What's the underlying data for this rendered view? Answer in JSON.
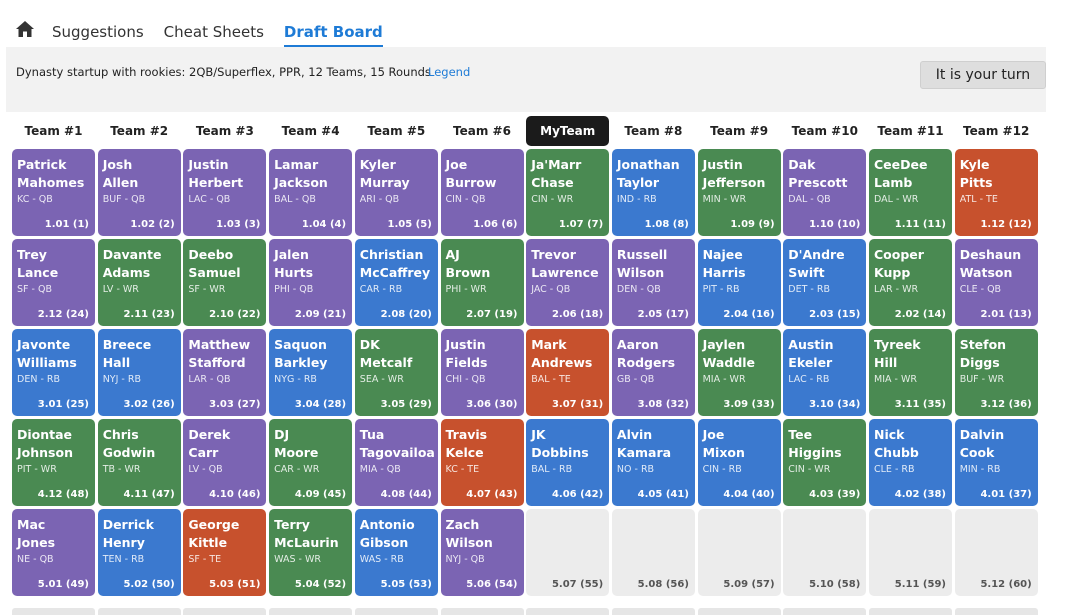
{
  "nav": {
    "home_icon": "home-icon",
    "tabs": [
      {
        "label": "Suggestions",
        "active": false
      },
      {
        "label": "Cheat Sheets",
        "active": false
      },
      {
        "label": "Draft Board",
        "active": true
      }
    ]
  },
  "settings_text": "Dynasty startup with rookies: 2QB/Superflex, PPR, 12 Teams, 15 Rounds",
  "legend_link": "Legend",
  "turn_button": "It is your turn",
  "colors": {
    "QB": "#7b64b3",
    "RB": "#3b79cf",
    "WR": "#4a8a52",
    "TE": "#c7512d",
    "accent": "#1e7bd6"
  },
  "teams": [
    "Team #1",
    "Team #2",
    "Team #3",
    "Team #4",
    "Team #5",
    "Team #6",
    "MyTeam",
    "Team #8",
    "Team #9",
    "Team #10",
    "Team #11",
    "Team #12"
  ],
  "my_team_index": 6,
  "rounds": [
    [
      {
        "first": "Patrick",
        "last": "Mahomes",
        "team": "KC",
        "pos": "QB",
        "pick": "1.01 (1)"
      },
      {
        "first": "Josh",
        "last": "Allen",
        "team": "BUF",
        "pos": "QB",
        "pick": "1.02 (2)"
      },
      {
        "first": "Justin",
        "last": "Herbert",
        "team": "LAC",
        "pos": "QB",
        "pick": "1.03 (3)"
      },
      {
        "first": "Lamar",
        "last": "Jackson",
        "team": "BAL",
        "pos": "QB",
        "pick": "1.04 (4)"
      },
      {
        "first": "Kyler",
        "last": "Murray",
        "team": "ARI",
        "pos": "QB",
        "pick": "1.05 (5)"
      },
      {
        "first": "Joe",
        "last": "Burrow",
        "team": "CIN",
        "pos": "QB",
        "pick": "1.06 (6)"
      },
      {
        "first": "Ja'Marr",
        "last": "Chase",
        "team": "CIN",
        "pos": "WR",
        "pick": "1.07 (7)"
      },
      {
        "first": "Jonathan",
        "last": "Taylor",
        "team": "IND",
        "pos": "RB",
        "pick": "1.08 (8)"
      },
      {
        "first": "Justin",
        "last": "Jefferson",
        "team": "MIN",
        "pos": "WR",
        "pick": "1.09 (9)"
      },
      {
        "first": "Dak",
        "last": "Prescott",
        "team": "DAL",
        "pos": "QB",
        "pick": "1.10 (10)"
      },
      {
        "first": "CeeDee",
        "last": "Lamb",
        "team": "DAL",
        "pos": "WR",
        "pick": "1.11 (11)"
      },
      {
        "first": "Kyle",
        "last": "Pitts",
        "team": "ATL",
        "pos": "TE",
        "pick": "1.12 (12)"
      }
    ],
    [
      {
        "first": "Trey",
        "last": "Lance",
        "team": "SF",
        "pos": "QB",
        "pick": "2.12 (24)"
      },
      {
        "first": "Davante",
        "last": "Adams",
        "team": "LV",
        "pos": "WR",
        "pick": "2.11 (23)"
      },
      {
        "first": "Deebo",
        "last": "Samuel",
        "team": "SF",
        "pos": "WR",
        "pick": "2.10 (22)"
      },
      {
        "first": "Jalen",
        "last": "Hurts",
        "team": "PHI",
        "pos": "QB",
        "pick": "2.09 (21)"
      },
      {
        "first": "Christian",
        "last": "McCaffrey",
        "team": "CAR",
        "pos": "RB",
        "pick": "2.08 (20)"
      },
      {
        "first": "AJ",
        "last": "Brown",
        "team": "PHI",
        "pos": "WR",
        "pick": "2.07 (19)"
      },
      {
        "first": "Trevor",
        "last": "Lawrence",
        "team": "JAC",
        "pos": "QB",
        "pick": "2.06 (18)"
      },
      {
        "first": "Russell",
        "last": "Wilson",
        "team": "DEN",
        "pos": "QB",
        "pick": "2.05 (17)"
      },
      {
        "first": "Najee",
        "last": "Harris",
        "team": "PIT",
        "pos": "RB",
        "pick": "2.04 (16)"
      },
      {
        "first": "D'Andre",
        "last": "Swift",
        "team": "DET",
        "pos": "RB",
        "pick": "2.03 (15)"
      },
      {
        "first": "Cooper",
        "last": "Kupp",
        "team": "LAR",
        "pos": "WR",
        "pick": "2.02 (14)"
      },
      {
        "first": "Deshaun",
        "last": "Watson",
        "team": "CLE",
        "pos": "QB",
        "pick": "2.01 (13)"
      }
    ],
    [
      {
        "first": "Javonte",
        "last": "Williams",
        "team": "DEN",
        "pos": "RB",
        "pick": "3.01 (25)"
      },
      {
        "first": "Breece",
        "last": "Hall",
        "team": "NYJ",
        "pos": "RB",
        "pick": "3.02 (26)"
      },
      {
        "first": "Matthew",
        "last": "Stafford",
        "team": "LAR",
        "pos": "QB",
        "pick": "3.03 (27)"
      },
      {
        "first": "Saquon",
        "last": "Barkley",
        "team": "NYG",
        "pos": "RB",
        "pick": "3.04 (28)"
      },
      {
        "first": "DK",
        "last": "Metcalf",
        "team": "SEA",
        "pos": "WR",
        "pick": "3.05 (29)"
      },
      {
        "first": "Justin",
        "last": "Fields",
        "team": "CHI",
        "pos": "QB",
        "pick": "3.06 (30)"
      },
      {
        "first": "Mark",
        "last": "Andrews",
        "team": "BAL",
        "pos": "TE",
        "pick": "3.07 (31)"
      },
      {
        "first": "Aaron",
        "last": "Rodgers",
        "team": "GB",
        "pos": "QB",
        "pick": "3.08 (32)"
      },
      {
        "first": "Jaylen",
        "last": "Waddle",
        "team": "MIA",
        "pos": "WR",
        "pick": "3.09 (33)"
      },
      {
        "first": "Austin",
        "last": "Ekeler",
        "team": "LAC",
        "pos": "RB",
        "pick": "3.10 (34)"
      },
      {
        "first": "Tyreek",
        "last": "Hill",
        "team": "MIA",
        "pos": "WR",
        "pick": "3.11 (35)"
      },
      {
        "first": "Stefon",
        "last": "Diggs",
        "team": "BUF",
        "pos": "WR",
        "pick": "3.12 (36)"
      }
    ],
    [
      {
        "first": "Diontae",
        "last": "Johnson",
        "team": "PIT",
        "pos": "WR",
        "pick": "4.12 (48)"
      },
      {
        "first": "Chris",
        "last": "Godwin",
        "team": "TB",
        "pos": "WR",
        "pick": "4.11 (47)"
      },
      {
        "first": "Derek",
        "last": "Carr",
        "team": "LV",
        "pos": "QB",
        "pick": "4.10 (46)"
      },
      {
        "first": "DJ",
        "last": "Moore",
        "team": "CAR",
        "pos": "WR",
        "pick": "4.09 (45)"
      },
      {
        "first": "Tua",
        "last": "Tagovailoa",
        "team": "MIA",
        "pos": "QB",
        "pick": "4.08 (44)"
      },
      {
        "first": "Travis",
        "last": "Kelce",
        "team": "KC",
        "pos": "TE",
        "pick": "4.07 (43)"
      },
      {
        "first": "JK",
        "last": "Dobbins",
        "team": "BAL",
        "pos": "RB",
        "pick": "4.06 (42)"
      },
      {
        "first": "Alvin",
        "last": "Kamara",
        "team": "NO",
        "pos": "RB",
        "pick": "4.05 (41)"
      },
      {
        "first": "Joe",
        "last": "Mixon",
        "team": "CIN",
        "pos": "RB",
        "pick": "4.04 (40)"
      },
      {
        "first": "Tee",
        "last": "Higgins",
        "team": "CIN",
        "pos": "WR",
        "pick": "4.03 (39)"
      },
      {
        "first": "Nick",
        "last": "Chubb",
        "team": "CLE",
        "pos": "RB",
        "pick": "4.02 (38)"
      },
      {
        "first": "Dalvin",
        "last": "Cook",
        "team": "MIN",
        "pos": "RB",
        "pick": "4.01 (37)"
      }
    ],
    [
      {
        "first": "Mac",
        "last": "Jones",
        "team": "NE",
        "pos": "QB",
        "pick": "5.01 (49)"
      },
      {
        "first": "Derrick",
        "last": "Henry",
        "team": "TEN",
        "pos": "RB",
        "pick": "5.02 (50)"
      },
      {
        "first": "George",
        "last": "Kittle",
        "team": "SF",
        "pos": "TE",
        "pick": "5.03 (51)"
      },
      {
        "first": "Terry",
        "last": "McLaurin",
        "team": "WAS",
        "pos": "WR",
        "pick": "5.04 (52)"
      },
      {
        "first": "Antonio",
        "last": "Gibson",
        "team": "WAS",
        "pos": "RB",
        "pick": "5.05 (53)"
      },
      {
        "first": "Zach",
        "last": "Wilson",
        "team": "NYJ",
        "pos": "QB",
        "pick": "5.06 (54)"
      },
      {
        "first": "",
        "last": "",
        "team": "",
        "pos": "",
        "pick": "5.07 (55)"
      },
      {
        "first": "",
        "last": "",
        "team": "",
        "pos": "",
        "pick": "5.08 (56)"
      },
      {
        "first": "",
        "last": "",
        "team": "",
        "pos": "",
        "pick": "5.09 (57)"
      },
      {
        "first": "",
        "last": "",
        "team": "",
        "pos": "",
        "pick": "5.10 (58)"
      },
      {
        "first": "",
        "last": "",
        "team": "",
        "pos": "",
        "pick": "5.11 (59)"
      },
      {
        "first": "",
        "last": "",
        "team": "",
        "pos": "",
        "pick": "5.12 (60)"
      }
    ]
  ]
}
